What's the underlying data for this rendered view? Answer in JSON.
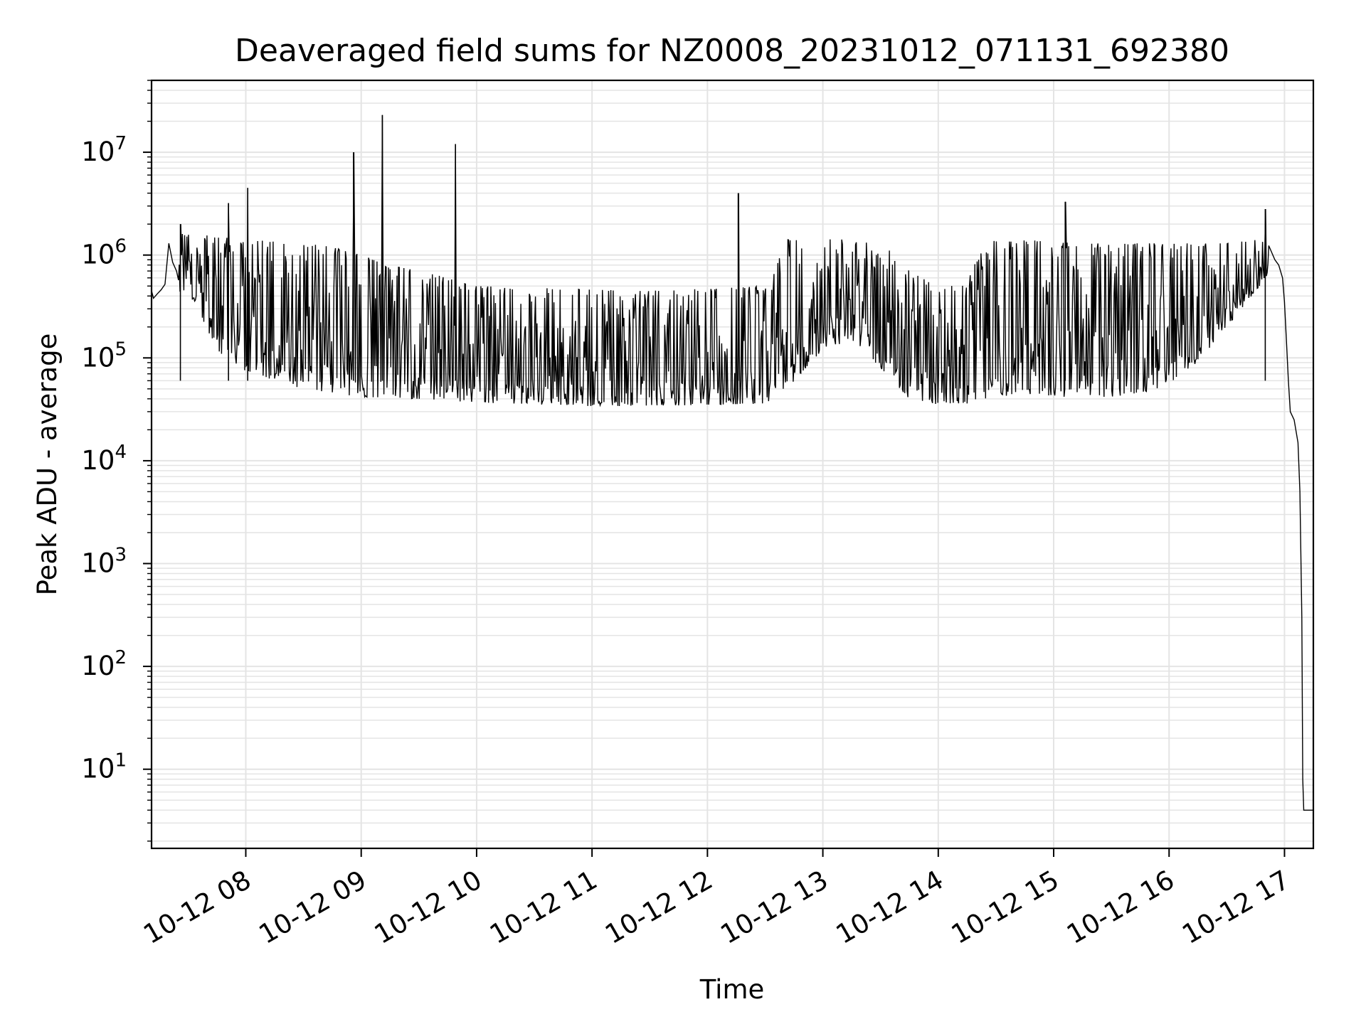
{
  "chart_data": {
    "type": "line",
    "title": "Deaveraged field sums for NZ0008_20231012_071131_692380",
    "xlabel": "Time",
    "ylabel": "Peak ADU - average",
    "yscale": "log",
    "grid": true,
    "x_range": [
      "2023-10-12 07:11",
      "2023-10-12 17:15"
    ],
    "ylim": [
      1.7,
      50000000
    ],
    "x_ticks": [
      "10-12 08",
      "10-12 09",
      "10-12 10",
      "10-12 11",
      "10-12 12",
      "10-12 13",
      "10-12 14",
      "10-12 15",
      "10-12 16",
      "10-12 17"
    ],
    "x_tick_hours": [
      8,
      9,
      10,
      11,
      12,
      13,
      14,
      15,
      16,
      17
    ],
    "y_ticks": [
      {
        "value": 10,
        "base": "10",
        "exp": "1"
      },
      {
        "value": 100,
        "base": "10",
        "exp": "2"
      },
      {
        "value": 1000,
        "base": "10",
        "exp": "3"
      },
      {
        "value": 10000,
        "base": "10",
        "exp": "4"
      },
      {
        "value": 100000,
        "base": "10",
        "exp": "5"
      },
      {
        "value": 1000000,
        "base": "10",
        "exp": "6"
      },
      {
        "value": 10000000,
        "base": "10",
        "exp": "7"
      }
    ],
    "line_color": "#000000",
    "grid_color": "#e4e4e4",
    "series": [
      {
        "x": [
          "07:11",
          "07:12",
          "07:14",
          "07:16",
          "07:18",
          "07:20",
          "07:22",
          "07:24",
          "07:26",
          "07:30",
          "07:35",
          "07:40",
          "07:45",
          "07:50",
          "07:55",
          "08:00",
          "08:05",
          "08:10",
          "08:15",
          "08:20",
          "08:25",
          "08:30",
          "08:35",
          "08:40",
          "08:45",
          "08:50",
          "08:55",
          "09:00",
          "09:05",
          "09:10",
          "09:15",
          "09:20",
          "09:25",
          "09:30",
          "09:35",
          "09:40",
          "09:45",
          "09:50",
          "09:55",
          "10:00",
          "10:15",
          "10:30",
          "10:45",
          "11:00",
          "11:15",
          "11:30",
          "11:45",
          "12:00",
          "12:15",
          "12:30",
          "12:40",
          "12:45",
          "12:50",
          "12:55",
          "13:00",
          "13:05",
          "13:10",
          "13:15",
          "13:20",
          "13:25",
          "13:30",
          "13:35",
          "13:40",
          "13:45",
          "13:50",
          "13:55",
          "14:00",
          "14:10",
          "14:20",
          "14:25",
          "14:30",
          "14:35",
          "14:40",
          "14:45",
          "14:50",
          "14:55",
          "15:00",
          "15:10",
          "15:20",
          "15:30",
          "15:40",
          "15:50",
          "16:00",
          "16:10",
          "16:20",
          "16:30",
          "16:40",
          "16:45",
          "16:50",
          "16:52",
          "16:55",
          "16:57",
          "16:59",
          "17:00",
          "17:01",
          "17:02",
          "17:03",
          "17:05",
          "17:07",
          "17:08",
          "17:09",
          "17:09.5",
          "17:10",
          "17:11",
          "17:12",
          "17:13",
          "17:14",
          "17:15"
        ],
        "y": [
          450000,
          380000,
          420000,
          460000,
          520000,
          1300000,
          850000,
          700000,
          1000000,
          1000000,
          700000,
          650000,
          600000,
          550000,
          500000,
          500000,
          550000,
          450000,
          400000,
          350000,
          300000,
          260000,
          230000,
          200000,
          160000,
          140000,
          120000,
          110000,
          100000,
          90000,
          85000,
          80000,
          75000,
          70000,
          65000,
          60000,
          58000,
          55000,
          52000,
          48000,
          44000,
          42000,
          41000,
          40000,
          41000,
          42000,
          43000,
          44000,
          46000,
          48000,
          200000,
          220000,
          300000,
          400000,
          450000,
          480000,
          400000,
          300000,
          200000,
          150000,
          100000,
          80000,
          60000,
          50000,
          45000,
          42000,
          45000,
          80000,
          120000,
          300000,
          500000,
          380000,
          350000,
          330000,
          300000,
          280000,
          260000,
          250000,
          240000,
          220000,
          220000,
          240000,
          280000,
          320000,
          380000,
          450000,
          550000,
          620000,
          700000,
          850000,
          900000,
          800000,
          600000,
          350000,
          150000,
          60000,
          30000,
          25000,
          15000,
          5000,
          300,
          8,
          4,
          4,
          4,
          4,
          4,
          4
        ]
      }
    ],
    "band": {
      "x": [
        "07:25",
        "07:35",
        "07:45",
        "07:55",
        "08:05",
        "08:15",
        "08:30",
        "08:45",
        "09:00",
        "09:15",
        "09:30",
        "09:45",
        "10:00",
        "10:30",
        "11:00",
        "11:30",
        "12:00",
        "12:30",
        "12:40",
        "12:45",
        "13:00",
        "13:15",
        "13:30",
        "13:45",
        "14:00",
        "14:15",
        "14:25",
        "14:30",
        "14:45",
        "15:00",
        "15:15",
        "15:30",
        "15:45",
        "16:00",
        "16:15",
        "16:30",
        "16:45",
        "16:52"
      ],
      "low": [
        450000,
        300000,
        120000,
        80000,
        70000,
        60000,
        50000,
        45000,
        42000,
        40000,
        40000,
        38000,
        37000,
        35000,
        34000,
        34000,
        35000,
        36000,
        45000,
        60000,
        120000,
        150000,
        80000,
        40000,
        35000,
        36000,
        38000,
        40000,
        45000,
        42000,
        41000,
        42000,
        45000,
        55000,
        90000,
        200000,
        450000,
        650000
      ],
      "high": [
        1700000,
        1600000,
        1500000,
        1450000,
        1400000,
        1350000,
        1300000,
        1200000,
        1000000,
        800000,
        700000,
        600000,
        500000,
        480000,
        460000,
        450000,
        470000,
        500000,
        1400000,
        1500000,
        1450000,
        1400000,
        1300000,
        800000,
        450000,
        600000,
        1300000,
        1400000,
        1400000,
        1350000,
        1300000,
        1300000,
        1300000,
        1300000,
        1300000,
        1300000,
        1400000,
        1300000
      ]
    },
    "spikes": [
      {
        "x": "07:26",
        "y": 2000000
      },
      {
        "x": "07:51",
        "y": 3200000
      },
      {
        "x": "08:01",
        "y": 4500000
      },
      {
        "x": "08:56",
        "y": 10000000
      },
      {
        "x": "09:11",
        "y": 23000000
      },
      {
        "x": "09:49",
        "y": 12000000
      },
      {
        "x": "12:16",
        "y": 4000000
      },
      {
        "x": "15:06",
        "y": 3300000
      },
      {
        "x": "16:50",
        "y": 2800000
      }
    ]
  }
}
